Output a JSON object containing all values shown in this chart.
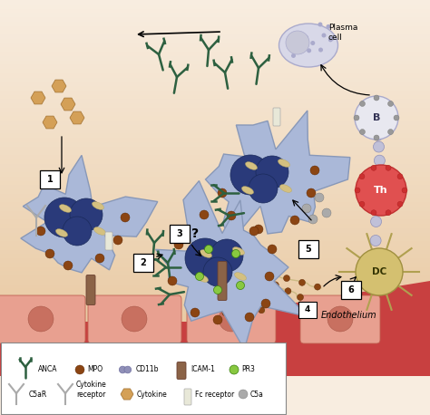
{
  "bg_top": "#f8ede0",
  "bg_bottom": "#e8c8a0",
  "endo_red": "#c84040",
  "endo_cell_fill": "#e8a090",
  "endo_cell_outline": "#c06050",
  "endo_nucleus": "#c87060",
  "cell_fill": "#aab8d8",
  "cell_outline": "#8898b8",
  "nucleus_color": "#2a3a7a",
  "anca_color": "#2d6040",
  "mpo_color": "#8B4513",
  "pr3_color": "#88c840",
  "c5a_color": "#999999",
  "icam_color": "#8B6347",
  "cd11b_color": "#8888aa",
  "cytokine_color": "#d4a057",
  "net_color": "#c8b880",
  "b_cell_fill": "#e8e8f0",
  "th_cell_fill": "#e05050",
  "dc_cell_fill": "#d4c070",
  "plasma_cell_fill": "#d8d8e8",
  "legend_box_color": "#888888",
  "endothelium_label": "Endothelium",
  "plasma_label": "Plasma\ncell",
  "b_label": "B",
  "th_label": "Th",
  "dc_label": "DC"
}
